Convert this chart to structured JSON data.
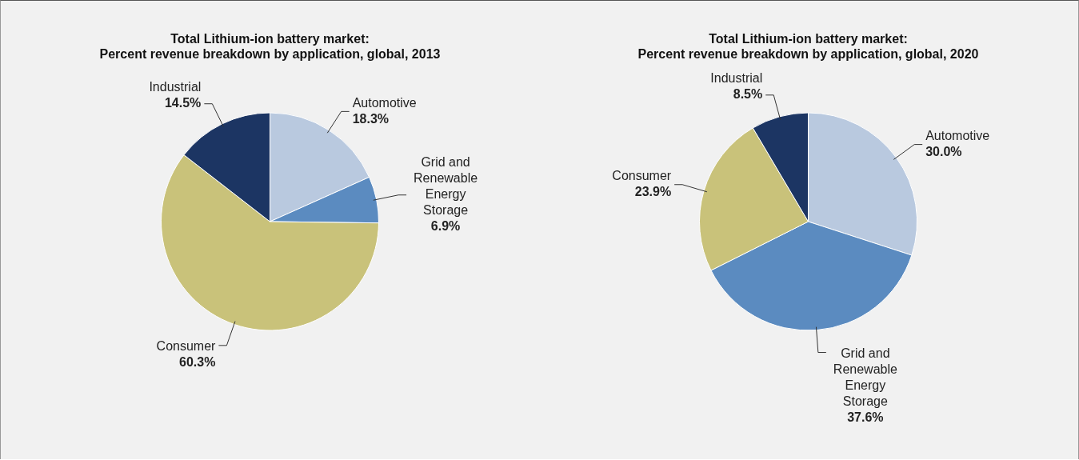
{
  "chart_data": [
    {
      "type": "pie",
      "title": "Total Lithium-ion battery market:",
      "subtitle": "Percent revenue breakdown by application, global, 2013",
      "categories": [
        "Automotive",
        "Grid and Renewable Energy Storage",
        "Consumer",
        "Industrial"
      ],
      "values": [
        18.3,
        6.9,
        60.3,
        14.5
      ],
      "value_labels": [
        "18.3%",
        "6.9%",
        "60.3%",
        "14.5%"
      ],
      "colors": [
        "#b9c9df",
        "#5b8bc0",
        "#c9c27a",
        "#1c3563"
      ]
    },
    {
      "type": "pie",
      "title": "Total Lithium-ion battery market:",
      "subtitle": "Percent revenue breakdown by application, global, 2020",
      "categories": [
        "Automotive",
        "Grid and Renewable Energy Storage",
        "Consumer",
        "Industrial"
      ],
      "values": [
        30.0,
        37.6,
        23.9,
        8.5
      ],
      "value_labels": [
        "30.0%",
        "37.6%",
        "23.9%",
        "8.5%"
      ],
      "colors": [
        "#b9c9df",
        "#5b8bc0",
        "#c9c27a",
        "#1c3563"
      ]
    }
  ]
}
